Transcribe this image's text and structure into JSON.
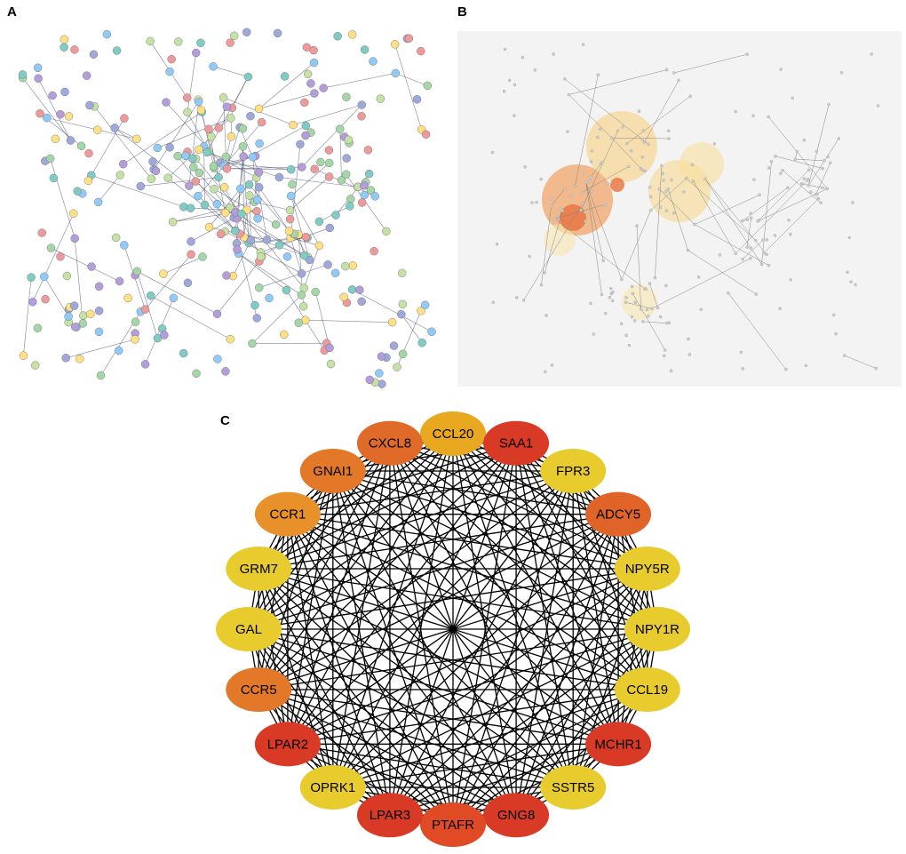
{
  "panels": [
    {
      "label": "A"
    },
    {
      "label": "B"
    },
    {
      "label": "C"
    }
  ],
  "network_c": {
    "nodes": [
      {
        "label": "CCL20",
        "color": "#e8a820"
      },
      {
        "label": "SAA1",
        "color": "#d93a26"
      },
      {
        "label": "FPR3",
        "color": "#e8cc2e"
      },
      {
        "label": "ADCY5",
        "color": "#e06428"
      },
      {
        "label": "NPY5R",
        "color": "#e8cc2e"
      },
      {
        "label": "NPY1R",
        "color": "#e8cc2e"
      },
      {
        "label": "CCL19",
        "color": "#e8cc2e"
      },
      {
        "label": "MCHR1",
        "color": "#d93a26"
      },
      {
        "label": "SSTR5",
        "color": "#e8cc2e"
      },
      {
        "label": "GNG8",
        "color": "#d93a26"
      },
      {
        "label": "PTAFR",
        "color": "#e04a24"
      },
      {
        "label": "LPAR3",
        "color": "#d93a26"
      },
      {
        "label": "OPRK1",
        "color": "#e8cc2e"
      },
      {
        "label": "LPAR2",
        "color": "#d93a26"
      },
      {
        "label": "CCR5",
        "color": "#e27828"
      },
      {
        "label": "GAL",
        "color": "#e8cc2e"
      },
      {
        "label": "GRM7",
        "color": "#e8cc2e"
      },
      {
        "label": "CCR1",
        "color": "#e8902a"
      },
      {
        "label": "GNAI1",
        "color": "#e27828"
      },
      {
        "label": "CXCL8",
        "color": "#e06a28"
      }
    ]
  }
}
